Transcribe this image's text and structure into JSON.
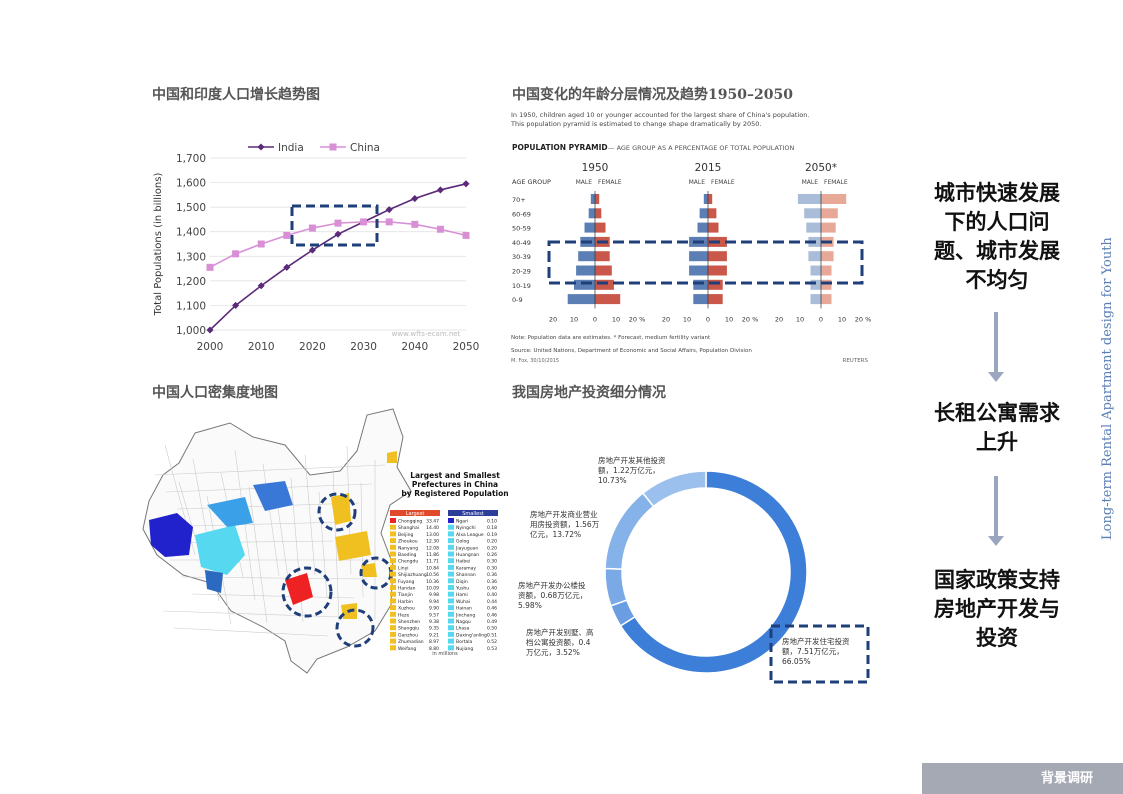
{
  "titles": {
    "pop_growth": "中国和印度人口增长趋势图",
    "age_pyramid": "中国变化的年龄分层情况及趋势1950–2050",
    "density_map": "中国人口密集度地图",
    "investment": "我国房地产投资细分情况"
  },
  "right_panel": {
    "point1": "城市快速发展下的人口问题、城市发展不均匀",
    "point2": "长租公寓需求上升",
    "point3": "国家政策支持房地产开发与投资",
    "vertical": "Long-term Rental Apartment design for Youth"
  },
  "footer": {
    "label": "背景调研"
  },
  "colors": {
    "india": "#5b2a7a",
    "china": "#d98fd6",
    "highlight": "#1e3f7a",
    "male": "#5b7fb4",
    "female": "#c9574a",
    "donut_main": "#3d7fd8",
    "donut_light": "#8fb4e8"
  },
  "line_chart": {
    "type": "line",
    "ylabel": "Total Populations (in billions)",
    "x_ticks": [
      "2000",
      "2010",
      "2020",
      "2030",
      "2040",
      "2050"
    ],
    "y_ticks": [
      "1,000",
      "1,100",
      "1,200",
      "1,300",
      "1,400",
      "1,500",
      "1,600",
      "1,700"
    ],
    "ylim": [
      1000,
      1700
    ],
    "watermark": "www.wfts-ecam.net",
    "series": [
      {
        "name": "India",
        "x": [
          2000,
          2005,
          2010,
          2015,
          2020,
          2025,
          2030,
          2035,
          2040,
          2045,
          2050
        ],
        "values": [
          1000,
          1100,
          1180,
          1255,
          1325,
          1390,
          1440,
          1490,
          1535,
          1570,
          1595
        ]
      },
      {
        "name": "China",
        "x": [
          2000,
          2005,
          2010,
          2015,
          2020,
          2025,
          2030,
          2035,
          2040,
          2045,
          2050
        ],
        "values": [
          1255,
          1310,
          1350,
          1385,
          1415,
          1435,
          1440,
          1440,
          1430,
          1410,
          1385
        ]
      }
    ]
  },
  "pyramid": {
    "subtitle1": "In 1950, children aged 10 or younger accounted for the largest share of China's population.",
    "subtitle2": "This population pyramid is estimated to change shape dramatically by 2050.",
    "heading": "POPULATION PYRAMID",
    "heading_sub": "— AGE GROUP AS A PERCENTAGE OF TOTAL POPULATION",
    "age_group_label": "AGE GROUP",
    "male_label": "MALE",
    "female_label": "FEMALE",
    "ages": [
      "70+",
      "60-69",
      "50-59",
      "40-49",
      "30-39",
      "20-29",
      "10-19",
      "0-9"
    ],
    "axis_ticks": [
      "20",
      "10",
      "0",
      "10",
      "20 %"
    ],
    "years": [
      {
        "label": "1950",
        "male": [
          2,
          3,
          5,
          7,
          8,
          9,
          10,
          13
        ],
        "female": [
          2,
          3,
          5,
          7,
          7,
          8,
          9,
          12
        ]
      },
      {
        "label": "2015",
        "male": [
          2,
          4,
          5,
          9,
          9,
          9,
          7,
          7
        ],
        "female": [
          2,
          4,
          5,
          9,
          9,
          9,
          7,
          7
        ]
      },
      {
        "label": "2050*",
        "male": [
          11,
          8,
          7,
          6,
          6,
          5,
          5,
          5
        ],
        "female": [
          12,
          8,
          7,
          6,
          6,
          5,
          5,
          5
        ]
      }
    ],
    "note": "Note: Population data are estimates.  * Forecast, medium fertility variant",
    "source": "Source: United Nations, Department of Economic and Social Affairs, Population Division",
    "credit": "M. Fox, 30/10/2015",
    "reuters": "REUTERS"
  },
  "map": {
    "title1": "Largest and Smallest",
    "title2": "Prefectures in China",
    "title3": "by Registered Population",
    "unit": "in millions",
    "largest_label": "Largest",
    "smallest_label": "Smallest",
    "largest": [
      [
        "Chongqing",
        "33.47"
      ],
      [
        "Shanghai",
        "14.40"
      ],
      [
        "Beijing",
        "13.00"
      ],
      [
        "Zhoukou",
        "12.30"
      ],
      [
        "Nanyang",
        "12.08"
      ],
      [
        "Baoding",
        "11.86"
      ],
      [
        "Chengdu",
        "11.71"
      ],
      [
        "Linyi",
        "10.84"
      ],
      [
        "Shijiazhuang",
        "10.56"
      ],
      [
        "Fuyang",
        "10.36"
      ],
      [
        "Handan",
        "10.09"
      ],
      [
        "Tianjin",
        "9.98"
      ],
      [
        "Harbin",
        "9.94"
      ],
      [
        "Xuzhou",
        "9.90"
      ],
      [
        "Heze",
        "9.57"
      ],
      [
        "Shenzhen",
        "9.38"
      ],
      [
        "Shangqiu",
        "9.35"
      ],
      [
        "Ganzhou",
        "9.21"
      ],
      [
        "Zhumadian",
        "8.97"
      ],
      [
        "Weifang",
        "8.80"
      ]
    ],
    "smallest": [
      [
        "Ngari",
        "0.10"
      ],
      [
        "Nyingchi",
        "0.18"
      ],
      [
        "Alxa League",
        "0.19"
      ],
      [
        "Golog",
        "0.20"
      ],
      [
        "Jiayuguan",
        "0.20"
      ],
      [
        "Huangnan",
        "0.26"
      ],
      [
        "Haibei",
        "0.30"
      ],
      [
        "Karamay",
        "0.30"
      ],
      [
        "Shannan",
        "0.36"
      ],
      [
        "Diqin",
        "0.36"
      ],
      [
        "Yushu",
        "0.40"
      ],
      [
        "Hami",
        "0.40"
      ],
      [
        "Wuhai",
        "0.44"
      ],
      [
        "Hainan",
        "0.46"
      ],
      [
        "Jinchang",
        "0.46"
      ],
      [
        "Nagqu",
        "0.49"
      ],
      [
        "Lhasa",
        "0.50"
      ],
      [
        "Daxing'anling",
        "0.51"
      ],
      [
        "Bortala",
        "0.52"
      ],
      [
        "Nujiang",
        "0.53"
      ]
    ]
  },
  "donut": {
    "type": "pie",
    "series": [
      {
        "name": "房地产开发住宅投资额，7.51万亿元，66.05%",
        "value": 66.05
      },
      {
        "name": "房地产开发别墅、高档公寓投资额，0.4万亿元，3.52%",
        "value": 3.52
      },
      {
        "name": "房地产开发办公楼投资额，0.68万亿元，5.98%",
        "value": 5.98
      },
      {
        "name": "房地产开发商业营业用房投资额，1.56万亿元，13.72%",
        "value": 13.72
      },
      {
        "name": "房地产开发其他投资额，1.22万亿元，10.73%",
        "value": 10.73
      }
    ],
    "labels": {
      "residential_1": "房地产开发住宅投资",
      "residential_2": "额，7.51万亿元，",
      "residential_3": "66.05%",
      "villa_1": "房地产开发别墅、高",
      "villa_2": "档公寓投资额，0.4",
      "villa_3": "万亿元，3.52%",
      "office_1": "房地产开发办公楼投",
      "office_2": "资额，0.68万亿元，",
      "office_3": "5.98%",
      "commercial_1": "房地产开发商业营业",
      "commercial_2": "用房投资额，1.56万",
      "commercial_3": "亿元，13.72%",
      "other_1": "房地产开发其他投资",
      "other_2": "额，1.22万亿元，",
      "other_3": "10.73%"
    }
  }
}
